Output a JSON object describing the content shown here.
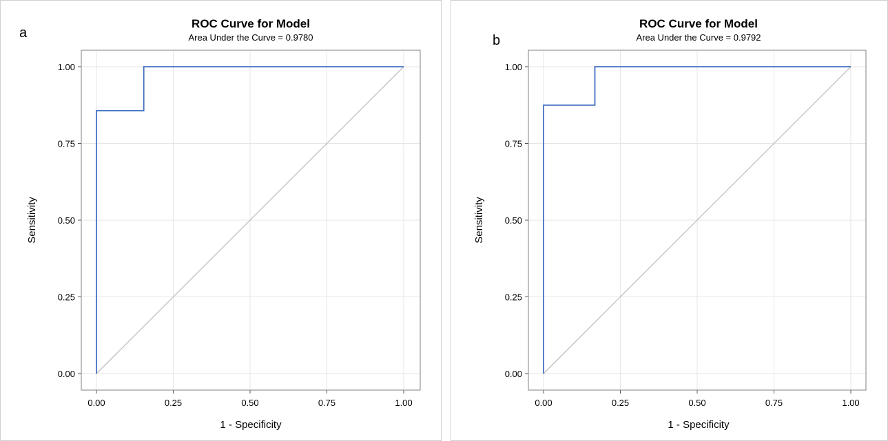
{
  "chart_data": [
    {
      "type": "line",
      "panel_label": "a",
      "title": "ROC Curve for Model",
      "subtitle": "Area Under the Curve = 0.9780",
      "xlabel": "1 - Specificity",
      "ylabel": "Sensitivity",
      "xlim": [
        0,
        1
      ],
      "ylim": [
        0,
        1
      ],
      "xticks": [
        "0.00",
        "0.25",
        "0.50",
        "0.75",
        "1.00"
      ],
      "yticks": [
        "0.00",
        "0.25",
        "0.50",
        "0.75",
        "1.00"
      ],
      "grid": true,
      "series": [
        {
          "color": "#4472c4",
          "x": [
            0,
            0,
            0.154,
            0.154,
            1
          ],
          "y": [
            0,
            0.857,
            0.857,
            1,
            1
          ]
        },
        {
          "color": "#bfbfbf",
          "x": [
            0,
            1
          ],
          "y": [
            0,
            1
          ]
        }
      ]
    },
    {
      "type": "line",
      "panel_label": "b",
      "title": "ROC Curve for Model",
      "subtitle": "Area Under the Curve = 0.9792",
      "xlabel": "1 - Specificity",
      "ylabel": "Sensitivity",
      "xlim": [
        0,
        1
      ],
      "ylim": [
        0,
        1
      ],
      "xticks": [
        "0.00",
        "0.25",
        "0.50",
        "0.75",
        "1.00"
      ],
      "yticks": [
        "0.00",
        "0.25",
        "0.50",
        "0.75",
        "1.00"
      ],
      "grid": true,
      "series": [
        {
          "color": "#4472c4",
          "x": [
            0,
            0,
            0.167,
            0.167,
            1
          ],
          "y": [
            0,
            0.875,
            0.875,
            1,
            1
          ]
        },
        {
          "color": "#bfbfbf",
          "x": [
            0,
            1
          ],
          "y": [
            0,
            1
          ]
        }
      ]
    }
  ]
}
